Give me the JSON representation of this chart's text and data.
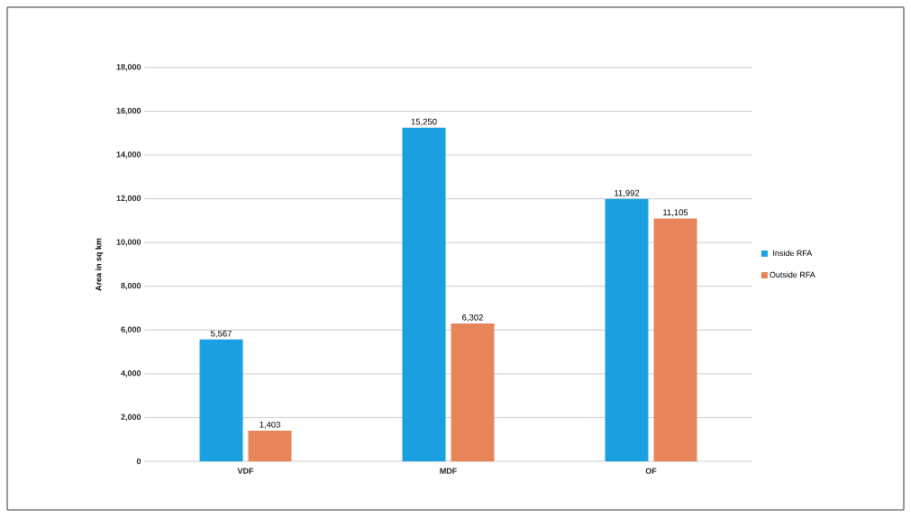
{
  "chart_data": {
    "type": "bar",
    "ylabel": "Area in sq km",
    "categories": [
      "VDF",
      "MDF",
      "OF"
    ],
    "series": [
      {
        "name": "Inside RFA",
        "color": "#1a9fe0",
        "values": [
          5567,
          15250,
          11992
        ],
        "value_labels": [
          "5,567",
          "15,250",
          "11,992"
        ]
      },
      {
        "name": "Outside RFA",
        "color": "#e8845a",
        "values": [
          1403,
          6302,
          11105
        ],
        "value_labels": [
          "1,403",
          "6,302",
          "11,105"
        ]
      }
    ],
    "ylim": [
      0,
      18000
    ],
    "yticks": [
      {
        "value": 0,
        "label": "0"
      },
      {
        "value": 2000,
        "label": "2,000"
      },
      {
        "value": 4000,
        "label": "4,000"
      },
      {
        "value": 6000,
        "label": "6,000"
      },
      {
        "value": 8000,
        "label": "8,000"
      },
      {
        "value": 10000,
        "label": "10,000"
      },
      {
        "value": 12000,
        "label": "12,000"
      },
      {
        "value": 14000,
        "label": "14,000"
      },
      {
        "value": 16000,
        "label": "16,000"
      },
      {
        "value": 18000,
        "label": "18,000"
      }
    ],
    "grid": "y",
    "legend": "right"
  }
}
